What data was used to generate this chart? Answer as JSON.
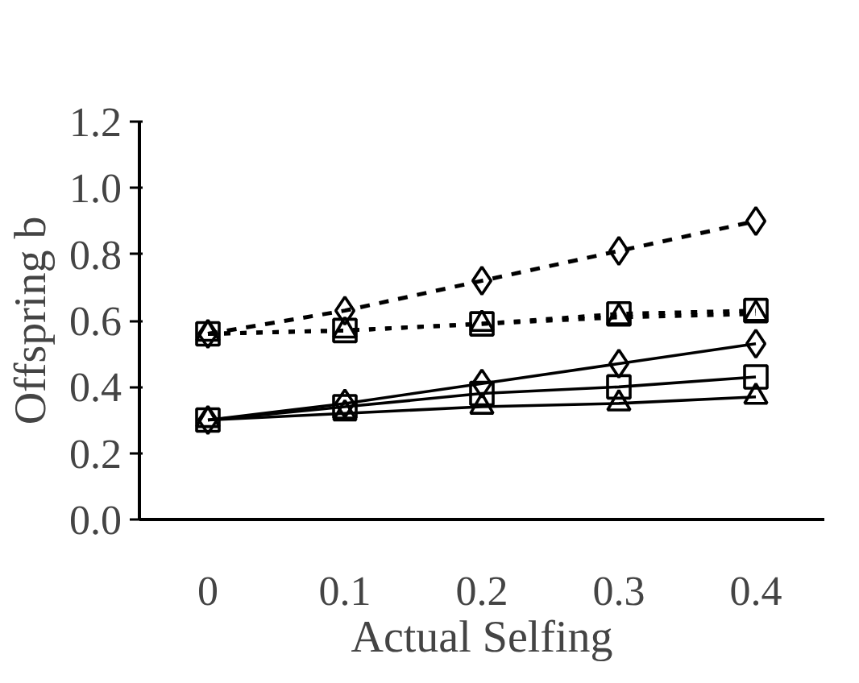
{
  "chart_data": {
    "type": "line",
    "xlabel": "Actual Selfing",
    "ylabel": "Offspring b",
    "categories": [
      "0",
      "0.1",
      "0.2",
      "0.3",
      "0.4"
    ],
    "ylim": [
      0,
      1.2
    ],
    "yticks": [
      {
        "value": 0,
        "label": "0.0"
      },
      0.2,
      0.4,
      0.6,
      0.8,
      {
        "value": 1,
        "label": "1.0"
      },
      1.2
    ],
    "grid": false,
    "series": [
      {
        "color": "#000000",
        "marker": "diamond",
        "line_style": "dashed",
        "values": [
          0.56,
          0.63,
          0.72,
          0.81,
          0.9
        ]
      },
      {
        "color": "#000000",
        "marker": "square",
        "line_style": "dotted",
        "values": [
          0.56,
          0.57,
          0.59,
          0.62,
          0.63
        ]
      },
      {
        "color": "#000000",
        "marker": "triangle",
        "line_style": "dotted",
        "values": [
          0.56,
          0.57,
          0.59,
          0.61,
          0.62
        ]
      },
      {
        "color": "#000000",
        "marker": "diamond",
        "line_style": "solid",
        "values": [
          0.3,
          0.35,
          0.41,
          0.47,
          0.53
        ]
      },
      {
        "color": "#000000",
        "marker": "square",
        "line_style": "solid",
        "values": [
          0.3,
          0.34,
          0.38,
          0.4,
          0.43
        ]
      },
      {
        "color": "#000000",
        "marker": "triangle",
        "line_style": "solid",
        "values": [
          0.3,
          0.32,
          0.34,
          0.35,
          0.37
        ]
      }
    ]
  }
}
